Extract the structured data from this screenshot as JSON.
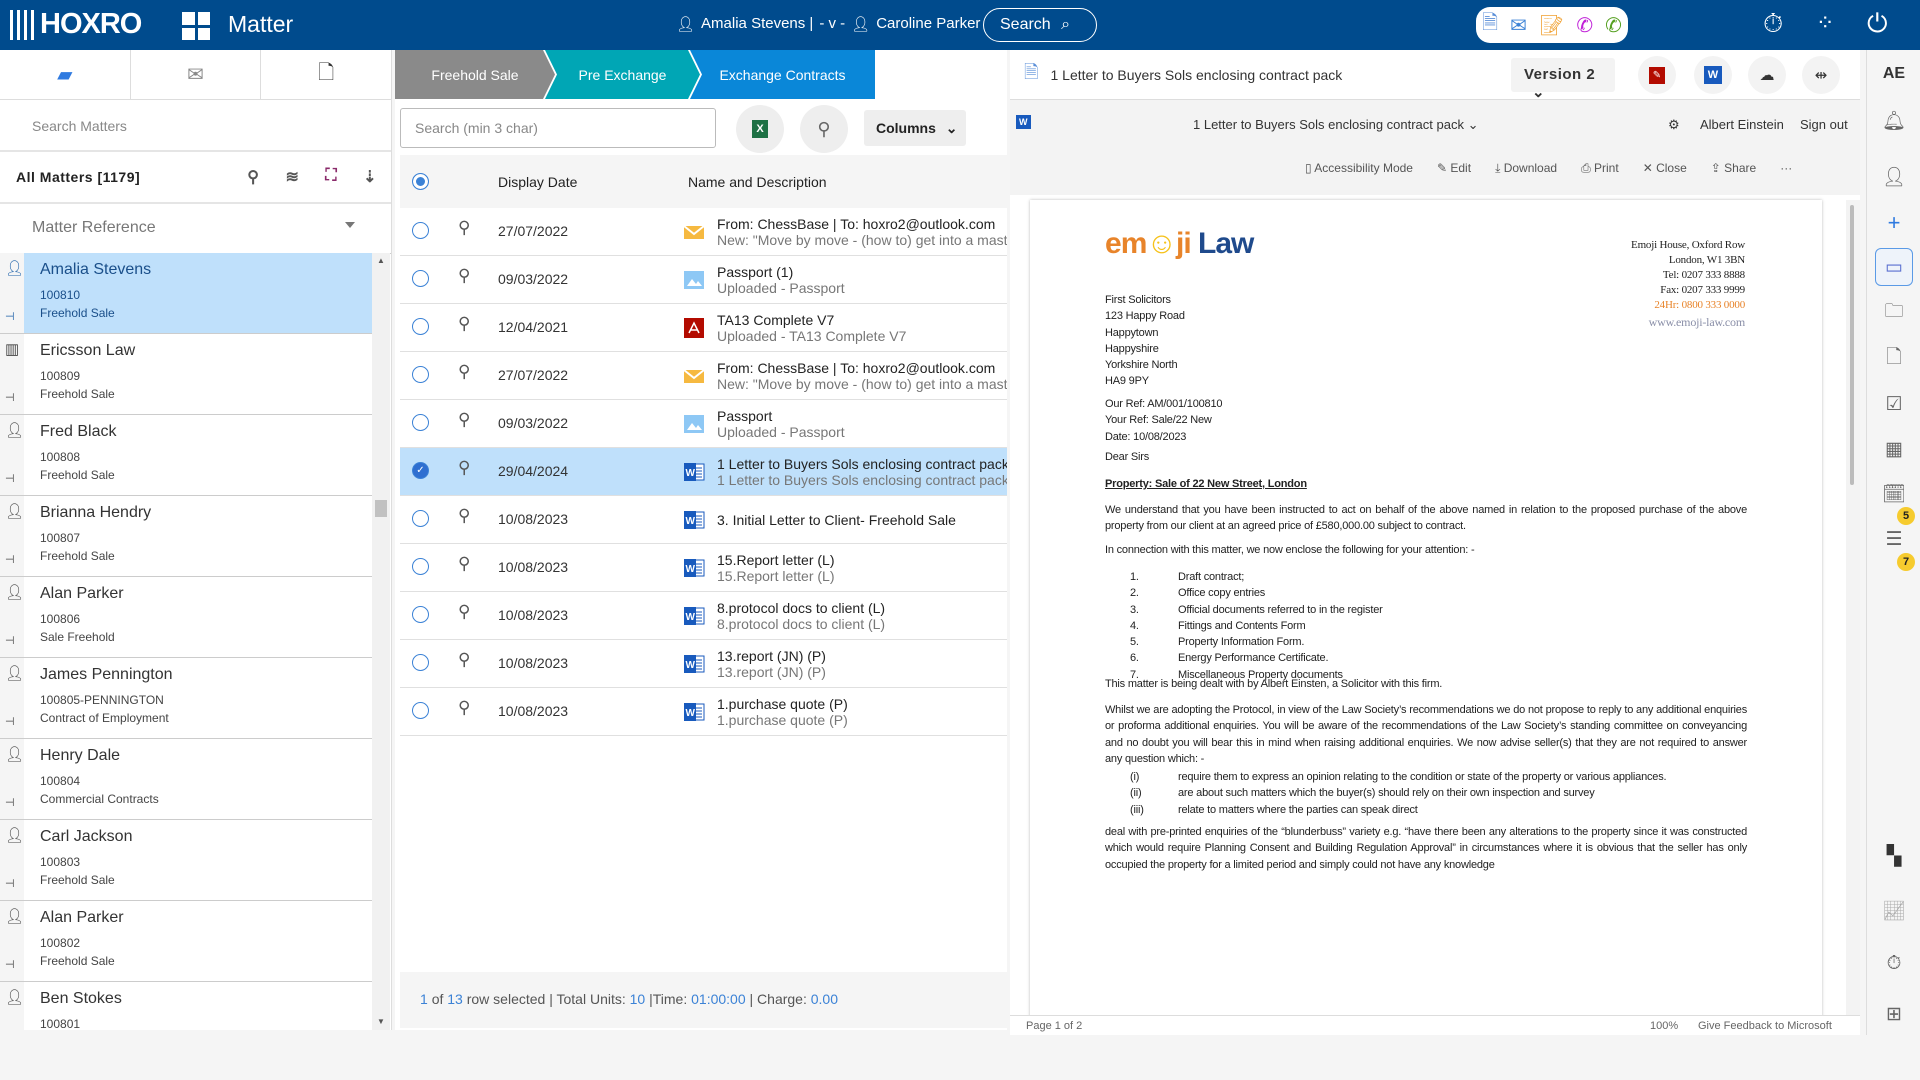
{
  "header": {
    "brand": "HOXRO",
    "app_title": "Matter",
    "user_client": "Amalia Stevens |",
    "versus": "- v -",
    "user_other": "Caroline Parker",
    "search_label": "Search"
  },
  "colors": {
    "header": "#004b8d",
    "stage_done": "#8a8a8a",
    "stage_prev": "#00a6b5",
    "stage_current": "#0a87d8",
    "selected_row": "#bfe0fb",
    "accent": "#3b82d6"
  },
  "left": {
    "search_placeholder": "Search Matters",
    "all_matters": "All Matters [1179]",
    "sort_field": "Matter Reference",
    "matters": [
      {
        "name": "Amalia Stevens",
        "ref": "100810",
        "type": "Freehold Sale",
        "kind": "person",
        "selected": true
      },
      {
        "name": "Ericsson Law",
        "ref": "100809",
        "type": "Freehold Sale",
        "kind": "company"
      },
      {
        "name": "Fred Black",
        "ref": "100808",
        "type": "Freehold Sale",
        "kind": "person"
      },
      {
        "name": "Brianna Hendry",
        "ref": "100807",
        "type": "Freehold Sale",
        "kind": "person"
      },
      {
        "name": "Alan Parker",
        "ref": "100806",
        "type": "Sale Freehold",
        "kind": "person"
      },
      {
        "name": "James Pennington",
        "ref": "100805-PENNINGTON",
        "type": "Contract of Employment",
        "kind": "person"
      },
      {
        "name": "Henry Dale",
        "ref": "100804",
        "type": "Commercial Contracts",
        "kind": "person"
      },
      {
        "name": "Carl Jackson",
        "ref": "100803",
        "type": "Freehold Sale",
        "kind": "person"
      },
      {
        "name": "Alan Parker",
        "ref": "100802",
        "type": "Freehold Sale",
        "kind": "person"
      },
      {
        "name": "Ben Stokes",
        "ref": "100801",
        "type": "",
        "kind": "person"
      }
    ]
  },
  "middle": {
    "stages": [
      "Freehold Sale",
      "Pre Exchange",
      "Exchange Contracts"
    ],
    "search_placeholder": "Search (min 3 char)",
    "columns_label": "Columns",
    "headers": {
      "date": "Display Date",
      "name": "Name and Description"
    },
    "rows": [
      {
        "date": "27/07/2022",
        "icon": "email",
        "l1": "From: ChessBase | To: hoxro2@outlook.com",
        "l2": "New: \"Move by move - (how to) get into a master's mind\""
      },
      {
        "date": "09/03/2022",
        "icon": "image",
        "l1": "Passport (1)",
        "l2": "Uploaded - Passport"
      },
      {
        "date": "12/04/2021",
        "icon": "pdf",
        "l1": "TA13 Complete V7",
        "l2": "Uploaded - TA13 Complete V7"
      },
      {
        "date": "27/07/2022",
        "icon": "email",
        "l1": "From: ChessBase | To: hoxro2@outlook.com",
        "l2": "New: \"Move by move - (how to) get into a master's mind\""
      },
      {
        "date": "09/03/2022",
        "icon": "image",
        "l1": "Passport",
        "l2": "Uploaded - Passport"
      },
      {
        "date": "29/04/2024",
        "icon": "word",
        "l1": "1 Letter to Buyers Sols enclosing contract pack",
        "l2": "1 Letter to Buyers Sols enclosing contract pack",
        "selected": true
      },
      {
        "date": "10/08/2023",
        "icon": "word",
        "l1": "3. Initial Letter to Client- Freehold Sale",
        "l2": ""
      },
      {
        "date": "10/08/2023",
        "icon": "word",
        "l1": "15.Report letter (L)",
        "l2": "15.Report letter (L)"
      },
      {
        "date": "10/08/2023",
        "icon": "word",
        "l1": "8.protocol docs to client (L)",
        "l2": "8.protocol docs to client (L)"
      },
      {
        "date": "10/08/2023",
        "icon": "word",
        "l1": "13.report (JN) (P)",
        "l2": "13.report (JN) (P)"
      },
      {
        "date": "10/08/2023",
        "icon": "word",
        "l1": "1.purchase quote (P)",
        "l2": "1.purchase quote (P)"
      }
    ],
    "footer": {
      "selected": "1",
      "of": "of",
      "total": "13",
      "t1": "row selected | Total Units:",
      "units": "10",
      "t2": "|Time:",
      "time": "01:00:00",
      "t3": "| Charge:",
      "charge": "0.00"
    }
  },
  "doc": {
    "title": "1 Letter to Buyers Sols enclosing contract pack",
    "version": "Version 2",
    "word_title": "1 Letter to Buyers Sols enclosing contract pack",
    "user": "Albert Einstein",
    "sign_out": "Sign out",
    "tools": [
      "Accessibility Mode",
      "Edit",
      "Download",
      "Print",
      "Close",
      "Share",
      "···"
    ],
    "logo_text": "emoji Law",
    "firm_address": [
      "Emoji House, Oxford Row",
      "London, W1 3BN",
      "Tel: 0207 333 8888",
      "Fax: 0207 333 9999"
    ],
    "firm_24hr": "24Hr: 0800 333 0000",
    "firm_web": "www.emoji-law.com",
    "recipient": [
      "First Solicitors",
      "123 Happy Road",
      "Happytown",
      "Happyshire",
      "Yorkshire North",
      "HA9 9PY"
    ],
    "refs": [
      "Our Ref: AM/001/100810",
      "Your Ref: Sale/22 New",
      "Date: 10/08/2023"
    ],
    "salutation": "Dear Sirs",
    "subject": "Property: Sale of 22 New Street, London",
    "p1": "We understand that you have been instructed to act on behalf of the above named in relation to the proposed purchase of the above property from our client at an agreed price of £580,000.00 subject to contract.",
    "p2": "In connection with this matter, we now enclose the following for your attention: -",
    "enclosures": [
      {
        "n": "1.",
        "t": "Draft contract;"
      },
      {
        "n": "2.",
        "t": "Office copy entries"
      },
      {
        "n": "3.",
        "t": "Official documents referred to in the register"
      },
      {
        "n": "4.",
        "t": "Fittings and Contents Form"
      },
      {
        "n": "5.",
        "t": "Property Information Form."
      },
      {
        "n": "6.",
        "t": "Energy Performance Certificate."
      },
      {
        "n": "7.",
        "t": "Miscellaneous Property documents"
      }
    ],
    "p3": "This matter is being dealt with by Albert Einsten, a Solicitor with this firm.",
    "p4": "Whilst we are adopting the Protocol, in view of the Law Society’s recommendations we do not propose to reply to any additional enquiries or proforma additional enquiries. You will be aware of the recommendations of the Law Society’s standing committee on conveyancing and no doubt you will bear this in mind when raising additional enquiries. We now advise seller(s) that they are not required to answer any question which: -",
    "clauses": [
      {
        "n": "(i)",
        "t": "require them to express an opinion relating to the condition or state of the property or various appliances."
      },
      {
        "n": "(ii)",
        "t": "are about such matters which the buyer(s) should rely on their own inspection and survey"
      },
      {
        "n": "(iii)",
        "t": "relate to matters where the parties can speak direct"
      }
    ],
    "p5": "deal with pre-printed enquiries of the “blunderbuss” variety e.g. “have there been any alterations to the property since it was constructed which would require Planning Consent and Building Regulation Approval” in circumstances where it is obvious that the seller has only occupied the property for a limited period and simply could not have any knowledge",
    "page_info": "Page 1 of 2",
    "zoom": "100%",
    "feedback": "Give Feedback to Microsoft"
  },
  "rail": {
    "initials": "AE",
    "badges": {
      "key_calendar": "5",
      "notes": "7"
    }
  }
}
